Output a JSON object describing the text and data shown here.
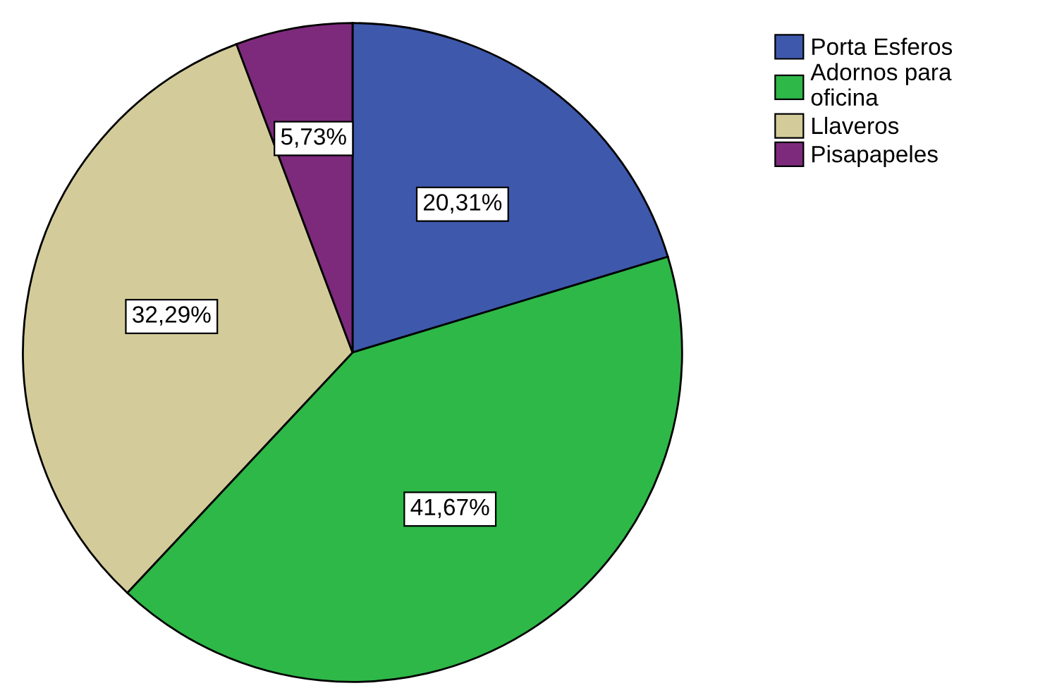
{
  "chart_data": {
    "type": "pie",
    "categories": [
      "Porta Esferos",
      "Adornos para\noficina",
      "Llaveros",
      "Pisapapeles"
    ],
    "values": [
      20.31,
      41.67,
      32.29,
      5.73
    ],
    "colors": [
      "#3e58ac",
      "#2eb848",
      "#d3cc9a",
      "#7d2a7c"
    ],
    "value_labels": [
      "20,31%",
      "41,67%",
      "32,29%",
      "5,73%"
    ],
    "legend": "top right"
  }
}
